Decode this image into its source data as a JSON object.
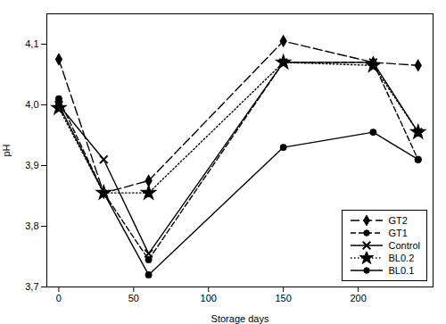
{
  "chart_data": {
    "type": "line",
    "xlabel": "Storage days",
    "ylabel": "pH",
    "x": [
      0,
      30,
      60,
      150,
      210,
      240
    ],
    "series": [
      {
        "name": "GT2",
        "color": "black",
        "marker": "diamond",
        "line_style": "long_dashed",
        "values": [
          4.075,
          3.855,
          3.875,
          4.105,
          4.07,
          4.065
        ]
      },
      {
        "name": "GT1",
        "color": "black",
        "marker": "circle",
        "line_style": "dashed",
        "values": [
          4.01,
          3.855,
          3.745,
          4.07,
          4.07,
          3.91
        ]
      },
      {
        "name": "Control",
        "color": "black",
        "marker": "x",
        "line_style": "solid",
        "values": [
          4.0,
          3.91,
          3.755,
          4.07,
          4.07,
          3.955
        ]
      },
      {
        "name": "BL0.2",
        "color": "black",
        "marker": "star",
        "line_style": "dotted",
        "values": [
          3.995,
          3.855,
          3.855,
          4.07,
          4.065,
          3.955
        ]
      },
      {
        "name": "BL0.1",
        "color": "black",
        "marker": "circle",
        "line_style": "solid",
        "values": [
          4.0,
          3.855,
          3.72,
          3.93,
          3.955,
          3.91
        ]
      }
    ],
    "xlim": [
      -8,
      250
    ],
    "xticks": [
      0,
      50,
      100,
      150,
      200
    ],
    "ylim": [
      3.7,
      4.15
    ],
    "yticks": [
      {
        "value": 3.7,
        "label": "3,7"
      },
      {
        "value": 3.8,
        "label": "3,8"
      },
      {
        "value": 3.9,
        "label": "3,9"
      },
      {
        "value": 4.0,
        "label": "4,0"
      },
      {
        "value": 4.1,
        "label": "4,1"
      }
    ],
    "grid": false,
    "legend": "lower right"
  }
}
